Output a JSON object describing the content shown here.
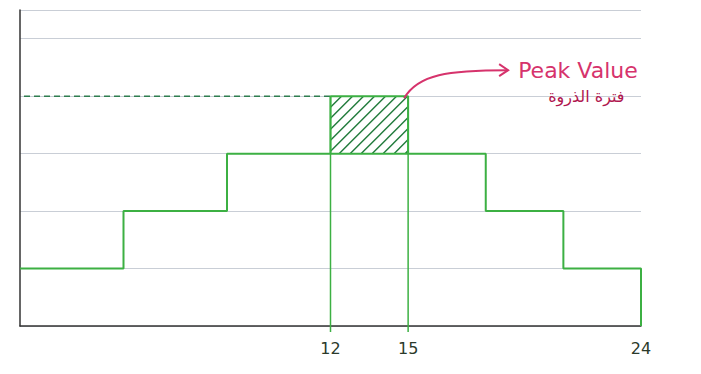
{
  "chart_data": {
    "type": "step",
    "x": [
      0,
      4,
      8,
      12,
      15,
      18,
      21,
      24
    ],
    "values": [
      1,
      2,
      3,
      4,
      3,
      2,
      1,
      0
    ],
    "color": "#3cb043",
    "xlim": [
      0,
      24
    ],
    "xticks": [
      12,
      15,
      24
    ],
    "ylim": [
      0,
      5.5
    ],
    "yticks": [
      0,
      1,
      2,
      3,
      4,
      5
    ],
    "tick_labels": "x",
    "grid": true,
    "vertical_lines": [
      12,
      15
    ],
    "reference_line": {
      "y": 4,
      "x": [
        0,
        12
      ]
    },
    "shaded_region": {
      "x": [
        12,
        15
      ],
      "y": [
        3,
        4
      ]
    },
    "annotations": [
      {
        "text": "Peak Value",
        "x": 15,
        "y": 4
      },
      {
        "text": "فترة الذروة",
        "x": 15,
        "y": 4
      }
    ]
  }
}
